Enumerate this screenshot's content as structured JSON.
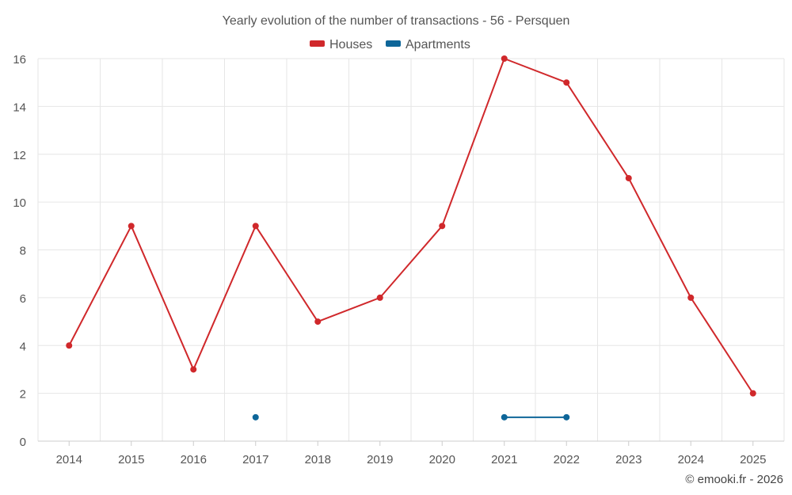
{
  "chart_data": {
    "type": "line",
    "title": "Yearly evolution of the number of transactions - 56 - Persquen",
    "categories": [
      "2014",
      "2015",
      "2016",
      "2017",
      "2018",
      "2019",
      "2020",
      "2021",
      "2022",
      "2023",
      "2024",
      "2025"
    ],
    "ylim": [
      0,
      16
    ],
    "yticks": [
      0,
      2,
      4,
      6,
      8,
      10,
      12,
      14,
      16
    ],
    "xlabel": "",
    "ylabel": "",
    "grid": true,
    "legend_position": "top-center",
    "series": [
      {
        "name": "Houses",
        "color": "#d0282b",
        "values": [
          4,
          9,
          3,
          9,
          5,
          6,
          9,
          16,
          15,
          11,
          6,
          2
        ]
      },
      {
        "name": "Apartments",
        "color": "#0e6699",
        "values": [
          null,
          null,
          null,
          1,
          null,
          null,
          null,
          1,
          1,
          null,
          null,
          null
        ]
      }
    ]
  },
  "credit": "© emooki.fr - 2026"
}
